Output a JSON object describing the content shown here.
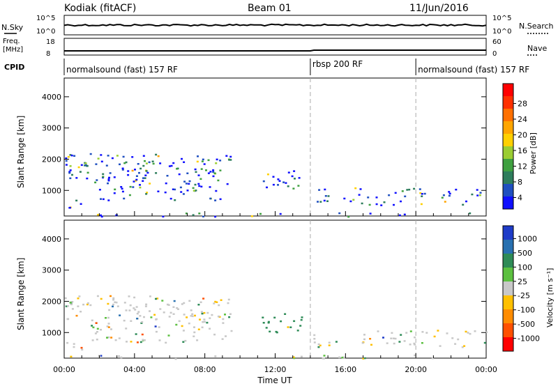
{
  "header": {
    "station": "Kodiak (fitACF)",
    "beam": "Beam 01",
    "date": "11/Jun/2016"
  },
  "top_panels": {
    "nsky_label": "N.Sky",
    "nsearch_label": "N.Search",
    "nsky_ticks": [
      "10^5",
      "10^0"
    ],
    "freq_label_1": "Freq.",
    "freq_label_2": "[MHz]",
    "freq_ticks": [
      "18",
      "8"
    ],
    "nave_label": "Nave",
    "nave_ticks": [
      "60",
      "0"
    ],
    "cpid_label": "CPID"
  },
  "cpid_segments": [
    {
      "label": "normalsound (fast) 157 RF",
      "start": 0,
      "end": 14
    },
    {
      "label": "rbsp 200 RF",
      "start": 14,
      "end": 20
    },
    {
      "label": "normalsound (fast) 157 RF",
      "start": 20,
      "end": 24
    }
  ],
  "power_panel": {
    "ylabel": "Slant Range [km]",
    "yticks": [
      "1000",
      "2000",
      "3000",
      "4000"
    ],
    "colorbar_label": "Power [dB]",
    "colorbar_ticks": [
      "4",
      "8",
      "12",
      "16",
      "20",
      "24",
      "28"
    ],
    "colors": [
      "#1010ff",
      "#2050c0",
      "#2e7d5c",
      "#3fa040",
      "#9acd32",
      "#ffd000",
      "#ffa500",
      "#ff7000",
      "#ff3000",
      "#ff0000"
    ]
  },
  "velocity_panel": {
    "ylabel": "Slant Range [km]",
    "yticks": [
      "1000",
      "2000",
      "3000",
      "4000"
    ],
    "colorbar_label": "Velocity [m s⁻¹]",
    "colorbar_ticks": [
      "1000",
      "500",
      "100",
      "25",
      "-25",
      "-100",
      "-500",
      "-1000"
    ],
    "colors": [
      "#1e3cc8",
      "#2870b0",
      "#2e8b57",
      "#5cc040",
      "#c8c8c8",
      "#ffc000",
      "#ff8c00",
      "#ff5000",
      "#ff0000"
    ]
  },
  "xaxis": {
    "ticks": [
      "00:00",
      "04:00",
      "08:00",
      "12:00",
      "16:00",
      "20:00",
      "00:00"
    ],
    "label": "Time UT"
  },
  "chart_data": {
    "type": "heatmap",
    "x_range_hours": [
      0,
      24
    ],
    "y_range_km": [
      180,
      4600
    ],
    "scatter_bands": [
      {
        "name": "band_a",
        "t0": 0.0,
        "t1": 9.5,
        "r0": 1300,
        "r1": 2200,
        "density": 0.7
      },
      {
        "name": "band_b",
        "t0": 1.5,
        "t1": 9.5,
        "r0": 700,
        "r1": 1300,
        "density": 0.5
      },
      {
        "name": "band_c",
        "t0": 0.0,
        "t1": 1.0,
        "r0": 450,
        "r1": 750,
        "density": 0.9
      },
      {
        "name": "band_d",
        "t0": 11.2,
        "t1": 13.5,
        "r0": 1000,
        "r1": 1700,
        "density": 0.55
      },
      {
        "name": "band_e",
        "t0": 14.0,
        "t1": 24.0,
        "r0": 550,
        "r1": 1100,
        "density": 0.45
      },
      {
        "name": "ground",
        "t0": 0.0,
        "t1": 24.0,
        "r0": 180,
        "r1": 300,
        "density": 0.35
      }
    ],
    "vertical_markers_hours": [
      14,
      20
    ]
  }
}
